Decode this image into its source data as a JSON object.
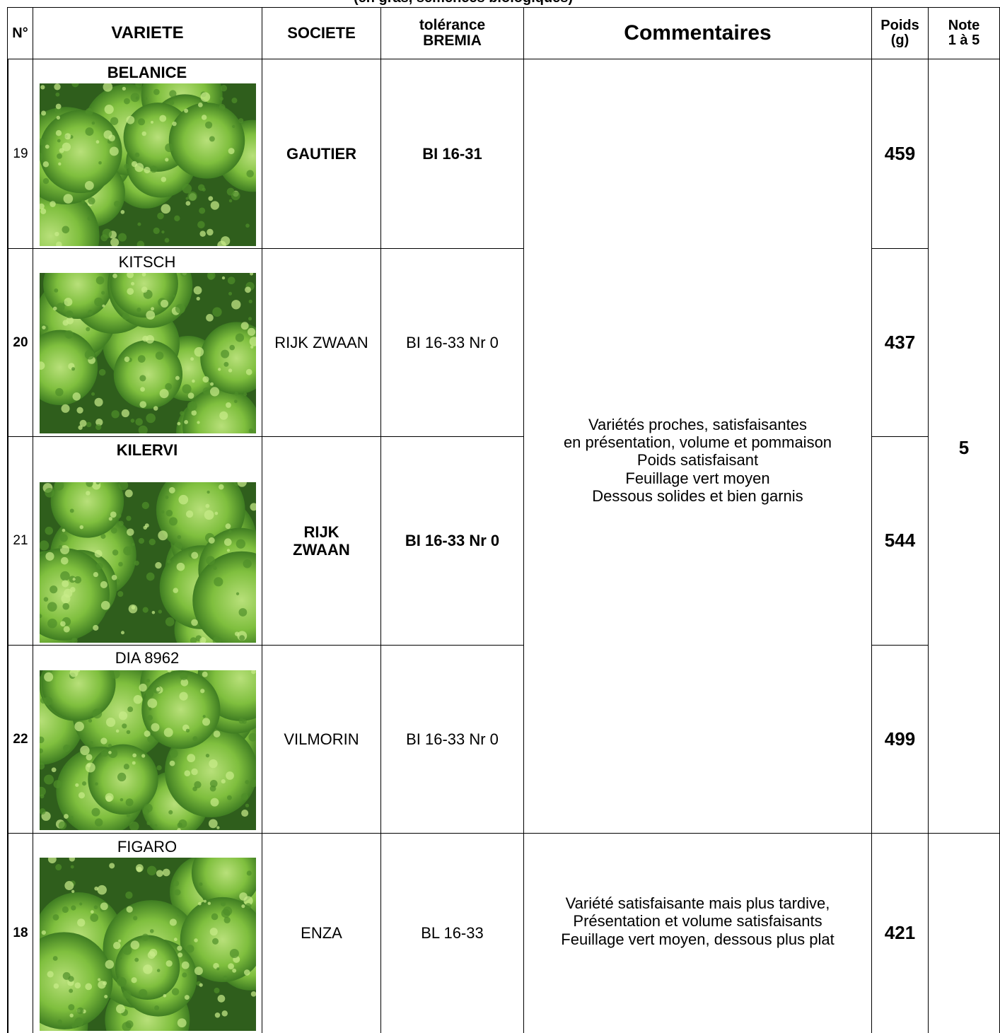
{
  "caption": "(en gras, semences biologiques)",
  "header": {
    "number": "N°",
    "variety": "VARIETE",
    "company": "SOCIETE",
    "tolerance": "tolérance\nBREMIA",
    "comments": "Commentaires",
    "weight": "Poids\n(g)",
    "score": "Note\n1 à 5"
  },
  "rows": [
    {
      "number": "19",
      "variety": "BELANICE",
      "company": "GAUTIER",
      "tolerance": "BI 16-31",
      "weight": "459"
    },
    {
      "number": "20",
      "variety": "KITSCH",
      "company": "RIJK ZWAAN",
      "tolerance": "BI 16-33 Nr 0",
      "weight": "437"
    },
    {
      "number": "21",
      "variety": "KILERVI",
      "company": "RIJK ZWAAN",
      "tolerance": "BI 16-33 Nr 0",
      "weight": "544"
    },
    {
      "number": "22",
      "variety": "DIA 8962",
      "company": "VILMORIN",
      "tolerance": "BI 16-33 Nr 0",
      "weight": "499"
    },
    {
      "number": "18",
      "variety": "FIGARO",
      "company": "ENZA",
      "tolerance": "BL 16-33",
      "weight": "421"
    }
  ],
  "groups": [
    {
      "comment": "Variétés proches, satisfaisantes\nen présentation, volume et pommaison\nPoids satisfaisant\nFeuillage vert moyen\nDessous solides et bien garnis",
      "score": "5"
    },
    {
      "comment": "Variété satisfaisante mais plus tardive,\nPrésentation et volume satisfaisants\nFeuillage vert moyen, dessous plus plat"
    }
  ]
}
